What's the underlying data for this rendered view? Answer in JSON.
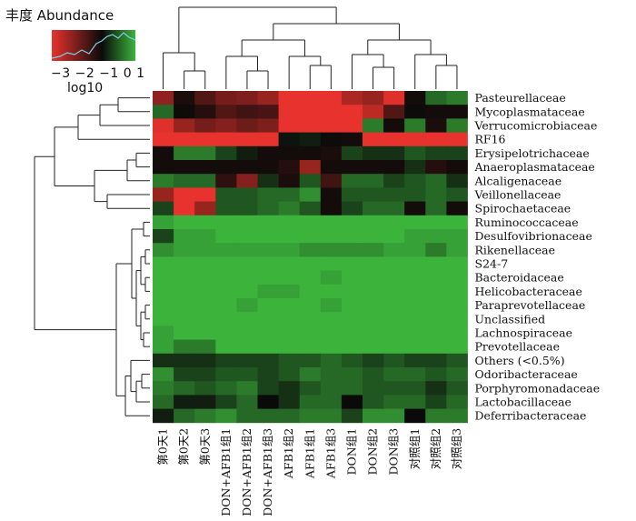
{
  "chart_data": {
    "type": "heatmap",
    "legend": {
      "title": "丰度 Abundance",
      "ticks": "−3 −2 −1  0  1",
      "unit": "log10",
      "colors": {
        "low": "#e8322d",
        "mid": "#0a0a0a",
        "high": "#3cb43c"
      }
    },
    "columns": [
      "第0天1",
      "第0天2",
      "第0天3",
      "DON+AFB1组1",
      "DON+AFB1组2",
      "DON+AFB1组3",
      "AFB1组2",
      "AFB1组1",
      "AFB1组3",
      "DON组1",
      "DON组2",
      "DON组3",
      "对照组1",
      "对照组2",
      "对照组3"
    ],
    "rows": [
      "Pasteurellaceae",
      "Mycoplasmataceae",
      "Verrucomicrobiaceae",
      "RF16",
      "Erysipelotrichaceae",
      "Anaeroplasmataceae",
      "Alcaligenaceae",
      "Veillonellaceae",
      "Spirochaetaceae",
      "Ruminococcaceae",
      "Desulfovibrionaceae",
      "Rikenellaceae",
      "S24-7",
      "Bacteroidaceae",
      "Helicobacteraceae",
      "Paraprevotellaceae",
      "Unclassified",
      "Lachnospiraceae",
      "Prevotellaceae",
      "Others (<0.5%)",
      "Odoribacteraceae",
      "Porphyromonadaceae",
      "Lactobacillaceae",
      "Deferribacteraceae"
    ],
    "values": [
      [
        -1.5,
        -0.2,
        -0.8,
        -1.2,
        -1.3,
        -1.6,
        -3,
        -2.6,
        -2.8,
        -1.8,
        -1.6,
        -2.4,
        -0.1,
        0.5,
        0.6
      ],
      [
        0.5,
        -0.05,
        -0.3,
        -0.8,
        -0.6,
        -0.7,
        -3,
        -3,
        -3,
        -2.6,
        -2,
        -0.8,
        -0.05,
        -0.1,
        -0.1
      ],
      [
        -2.4,
        -1.6,
        -1.2,
        -1.4,
        -1.1,
        -1.3,
        -2.8,
        -2.8,
        -2.6,
        -2.8,
        0.6,
        -0.1,
        0.6,
        -0.2,
        0.6
      ],
      [
        -3,
        -3,
        -3,
        -2.8,
        -2.6,
        -2.6,
        0.05,
        0.1,
        -0.05,
        -0.1,
        -3,
        -3,
        -3,
        -3,
        -3
      ],
      [
        -0.1,
        0.6,
        0.6,
        0.3,
        0.1,
        -0.1,
        -0.1,
        -0.1,
        -0.2,
        0.3,
        0.2,
        0.2,
        0.4,
        0.3,
        0.3
      ],
      [
        -0.1,
        -0.1,
        -0.1,
        -0.1,
        -0.1,
        -0.1,
        -0.3,
        -1.6,
        -0.1,
        -0.1,
        -0.1,
        -0.1,
        0.2,
        -0.3,
        -0.1
      ],
      [
        0.6,
        0.5,
        0.5,
        -0.4,
        -1.4,
        0.2,
        -0.2,
        0.4,
        -0.6,
        0.5,
        0.5,
        0.3,
        0.4,
        0.5,
        0.2
      ],
      [
        -1.6,
        -3,
        -3,
        0.4,
        0.4,
        0.5,
        0.5,
        0.7,
        -0.1,
        0.4,
        0.4,
        0.4,
        0.4,
        0.5,
        0.4
      ],
      [
        0.3,
        -3,
        -1.6,
        0.4,
        0.4,
        0.5,
        0.6,
        0.4,
        -0.1,
        0.3,
        0.5,
        0.5,
        -0.1,
        0.5,
        -0.1
      ],
      [
        0.8,
        0.9,
        0.9,
        1,
        1,
        0.9,
        0.9,
        1,
        1,
        0.9,
        0.9,
        0.9,
        0.9,
        0.9,
        0.9
      ],
      [
        0.3,
        0.8,
        0.8,
        0.9,
        0.9,
        0.9,
        0.9,
        0.9,
        0.9,
        0.9,
        0.9,
        0.9,
        0.8,
        0.8,
        0.8
      ],
      [
        0.7,
        0.8,
        0.8,
        0.8,
        0.8,
        0.8,
        0.8,
        0.7,
        0.7,
        0.7,
        0.7,
        0.8,
        0.8,
        0.6,
        0.8
      ],
      [
        1,
        1,
        1,
        1,
        1,
        1,
        1,
        1,
        1,
        1,
        1,
        1,
        1,
        1,
        1
      ],
      [
        1,
        1,
        1,
        1,
        1,
        1,
        1,
        1,
        0.8,
        1,
        0.9,
        1,
        1,
        0.9,
        1
      ],
      [
        1,
        1,
        1,
        0.9,
        0.9,
        0.8,
        0.8,
        0.9,
        0.9,
        1,
        0.9,
        0.9,
        1,
        0.9,
        1
      ],
      [
        0.9,
        1,
        1,
        0.9,
        0.8,
        1,
        0.9,
        0.9,
        0.8,
        1,
        1,
        1,
        0.9,
        1,
        0.9
      ],
      [
        1,
        1,
        1,
        1,
        1,
        1,
        1,
        1,
        1,
        1,
        1,
        1,
        1,
        1,
        1
      ],
      [
        0.8,
        0.9,
        0.9,
        1,
        1,
        1,
        1,
        1,
        0.9,
        0.9,
        1,
        1,
        1,
        1,
        1
      ],
      [
        0.8,
        0.6,
        0.6,
        1,
        1,
        1,
        1,
        1,
        0.9,
        1,
        1,
        1,
        1,
        1,
        1
      ],
      [
        0.2,
        0.2,
        0.2,
        0.3,
        0.3,
        0.3,
        0.4,
        0.4,
        0.5,
        0.4,
        0.3,
        0.4,
        0.3,
        0.3,
        0.4
      ],
      [
        0.7,
        0.3,
        0.3,
        0.4,
        0.4,
        0.3,
        0.4,
        0.6,
        0.5,
        0.5,
        0.4,
        0.5,
        0.5,
        0.4,
        0.5
      ],
      [
        0.6,
        0.5,
        0.4,
        0.5,
        0.6,
        0.3,
        0.2,
        0.4,
        0.5,
        0.5,
        0.4,
        0.4,
        0.4,
        0.2,
        0.4
      ],
      [
        0.5,
        0.1,
        0.1,
        0.3,
        0.5,
        0,
        0.2,
        0.5,
        0.5,
        0,
        0.4,
        0.5,
        0.5,
        0.3,
        0.5
      ],
      [
        0.1,
        0.5,
        0.6,
        0.7,
        0.5,
        0.5,
        0.5,
        0.6,
        0.6,
        0.3,
        0.7,
        0.7,
        0,
        0.6,
        0.6
      ]
    ]
  }
}
